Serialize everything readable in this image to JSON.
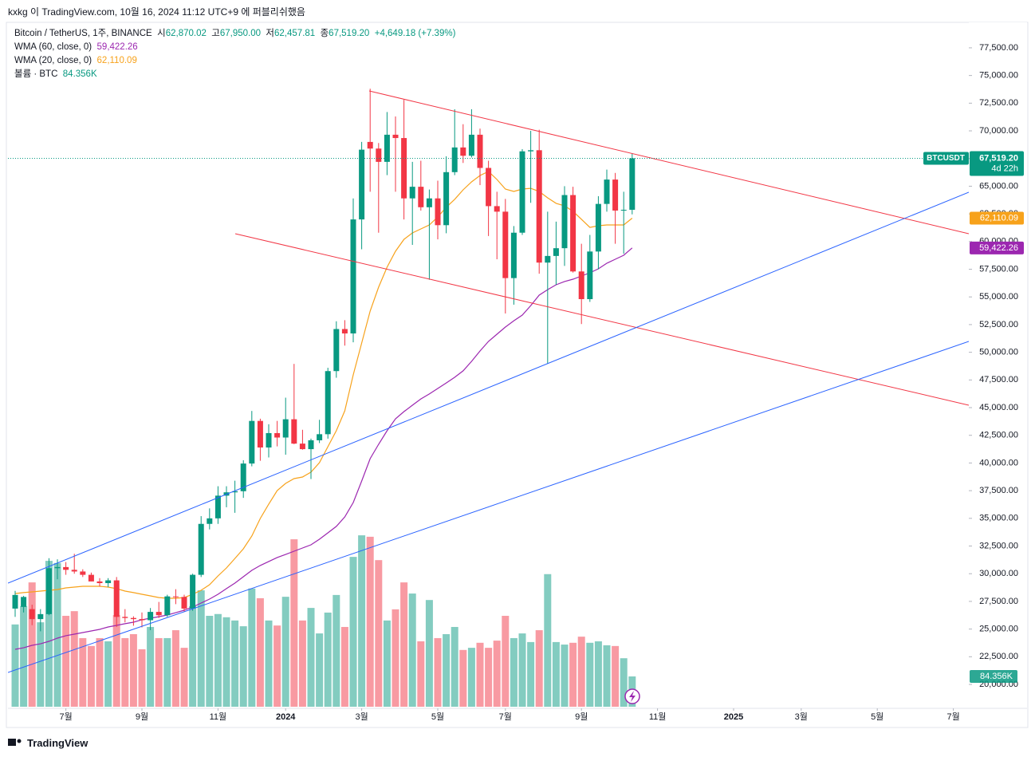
{
  "header": "kxkg 이 TradingView.com, 10월 16, 2024 11:12 UTC+9 에 퍼블리쉬했음",
  "footer_logo": "TradingView",
  "chart_data": {
    "type": "candlestick",
    "legend": {
      "symbol": "Bitcoin / TetherUS, 1주, BINANCE",
      "ohlc": [
        {
          "label": "시",
          "value": "62,870.02"
        },
        {
          "label": "고",
          "value": "67,950.00"
        },
        {
          "label": "저",
          "value": "62,457.81"
        },
        {
          "label": "종",
          "value": "67,519.20"
        }
      ],
      "change": "+4,649.18 (+7.39%)",
      "volume_name": "볼륨 · BTC",
      "volume_value": "84.356K"
    },
    "price_badge": {
      "symbol": "BTCUSDT",
      "price": "67,519.20",
      "countdown": "4d 22h"
    },
    "up_color": "#089981",
    "down_color": "#f23645",
    "volume_opacity": 0.5,
    "open": [
      26850,
      27000,
      26800,
      25900,
      26350,
      30500,
      30600,
      30350,
      30200,
      29900,
      29300,
      29150,
      29400,
      26100,
      26000,
      25900,
      25800,
      26550,
      26250,
      27950,
      27900,
      26850,
      29900,
      34500,
      35000,
      37050,
      37350,
      37450,
      39950,
      43800,
      41400,
      42700,
      42300,
      43950,
      41750,
      41250,
      42050,
      42600,
      48300,
      52100,
      51700,
      62000,
      69000,
      68400,
      67200,
      69650,
      69350,
      63900,
      64950,
      63100,
      63900,
      61480,
      66270,
      68500,
      67750,
      69650,
      66650,
      63200,
      62700,
      56700,
      60800,
      68150,
      68250,
      58100,
      58700,
      59400,
      64200,
      57300,
      54800,
      59100,
      63400,
      65600,
      62800,
      62870.02
    ],
    "high": [
      28450,
      28000,
      27200,
      26800,
      31400,
      31300,
      31050,
      31800,
      30400,
      30100,
      29600,
      29600,
      29700,
      26800,
      26150,
      26500,
      26900,
      27450,
      28100,
      28600,
      28100,
      30000,
      35200,
      35900,
      37900,
      37900,
      38400,
      40250,
      44700,
      44000,
      43500,
      43800,
      45900,
      48950,
      43000,
      42200,
      43900,
      48600,
      52800,
      52900,
      63900,
      69000,
      73800,
      68900,
      71700,
      71300,
      72800,
      67200,
      67300,
      64700,
      65500,
      67700,
      71950,
      70600,
      71950,
      70200,
      67300,
      64500,
      63850,
      61400,
      68350,
      70000,
      70100,
      62700,
      61800,
      65000,
      64950,
      59800,
      60600,
      64100,
      66500,
      66200,
      64500,
      67950
    ],
    "low": [
      26100,
      26500,
      25350,
      24800,
      26250,
      29500,
      29900,
      30000,
      29700,
      29300,
      28850,
      28800,
      25200,
      25600,
      25300,
      25150,
      24900,
      26000,
      26100,
      27250,
      26550,
      26650,
      29700,
      34000,
      34500,
      36000,
      35500,
      36850,
      39700,
      40200,
      40500,
      41500,
      40750,
      41700,
      41200,
      38550,
      41800,
      42200,
      47700,
      50600,
      50900,
      59300,
      64500,
      60800,
      66000,
      64500,
      62000,
      59700,
      62800,
      56550,
      60200,
      60750,
      66000,
      67100,
      67600,
      65100,
      60500,
      58400,
      53500,
      54300,
      60600,
      63500,
      57100,
      49000,
      56100,
      57800,
      57200,
      52550,
      54550,
      57500,
      62700,
      59800,
      58900,
      62457.81
    ],
    "close": [
      28080,
      27900,
      25900,
      26350,
      30500,
      30600,
      30350,
      30200,
      29900,
      29300,
      29150,
      29400,
      26100,
      26000,
      25900,
      25800,
      26550,
      26250,
      27950,
      27900,
      26850,
      29900,
      34500,
      35000,
      37050,
      37350,
      37450,
      39950,
      43800,
      41400,
      42700,
      42300,
      43950,
      41750,
      41250,
      42050,
      42600,
      48300,
      52100,
      51700,
      62000,
      68300,
      68400,
      67200,
      69650,
      69350,
      63900,
      64950,
      63100,
      63900,
      61480,
      66270,
      68500,
      67750,
      69650,
      66650,
      63200,
      62700,
      56700,
      60800,
      68150,
      68250,
      58100,
      58700,
      59400,
      64200,
      57300,
      54800,
      59100,
      63400,
      65600,
      62800,
      62870,
      67519.2
    ],
    "volume": [
      229000,
      280000,
      346000,
      235000,
      406000,
      400000,
      253000,
      266000,
      191000,
      169000,
      191000,
      182000,
      255000,
      191000,
      202000,
      160000,
      222000,
      191000,
      191000,
      213000,
      164000,
      280000,
      324000,
      253000,
      258000,
      249000,
      240000,
      224000,
      329000,
      302000,
      240000,
      226000,
      306000,
      466000,
      240000,
      275000,
      204000,
      262000,
      311000,
      222000,
      417000,
      477000,
      473000,
      408000,
      240000,
      271000,
      346000,
      315000,
      182000,
      297000,
      191000,
      202000,
      222000,
      158000,
      164000,
      178000,
      164000,
      184000,
      253000,
      191000,
      204000,
      180000,
      213000,
      369000,
      180000,
      173000,
      178000,
      195000,
      178000,
      182000,
      171000,
      169000,
      135000,
      84356
    ],
    "volume_lim": [
      0,
      1900000
    ],
    "indicators": [
      {
        "name": "WMA (60, close, 0)",
        "value_label": "59,422.26",
        "color": "#9c27b0",
        "values": [
          23170,
          23310,
          23530,
          23670,
          23890,
          24180,
          24400,
          24540,
          24680,
          24830,
          24970,
          25190,
          25330,
          25480,
          25620,
          25840,
          25980,
          26120,
          26270,
          26480,
          26700,
          26990,
          27350,
          27710,
          28140,
          28650,
          29150,
          29730,
          30300,
          30740,
          31100,
          31460,
          31740,
          32030,
          32320,
          32610,
          33110,
          33690,
          34270,
          35130,
          36430,
          38370,
          40390,
          41690,
          42910,
          43990,
          44640,
          45220,
          45790,
          46230,
          46730,
          47230,
          47740,
          48320,
          49180,
          50120,
          50980,
          51630,
          52280,
          52850,
          53360,
          54220,
          55160,
          55660,
          56100,
          56390,
          56600,
          56890,
          57180,
          57540,
          58040,
          58400,
          58760,
          59422.26
        ]
      },
      {
        "name": "WMA (20, close, 0)",
        "value_label": "62,110.09",
        "color": "#f7a21b",
        "values": [
          28210,
          28290,
          28360,
          28430,
          28500,
          28570,
          28720,
          28790,
          28860,
          28860,
          28860,
          28790,
          28650,
          28430,
          28290,
          28140,
          28000,
          27850,
          27780,
          27780,
          27850,
          28140,
          28500,
          29010,
          29800,
          30520,
          31380,
          32250,
          33400,
          34990,
          36280,
          37510,
          38160,
          38590,
          38730,
          39170,
          40030,
          41470,
          42920,
          44710,
          47960,
          50840,
          53720,
          55880,
          57680,
          59120,
          60200,
          60780,
          61140,
          61500,
          62220,
          63090,
          63810,
          64670,
          65390,
          65970,
          66330,
          65610,
          64740,
          64530,
          64740,
          64810,
          64530,
          63950,
          63450,
          63230,
          62730,
          62010,
          61280,
          61430,
          61500,
          61500,
          61500,
          62110.09
        ]
      }
    ],
    "trendlines": [
      {
        "color": "#f23645",
        "points": [
          [
            41.89,
            73605
          ],
          [
            112.83,
            60708
          ]
        ]
      },
      {
        "color": "#f23645",
        "points": [
          [
            26.04,
            60708
          ],
          [
            112.83,
            45218
          ]
        ]
      },
      {
        "color": "#2962ff",
        "points": [
          [
            -0.85,
            29150
          ],
          [
            112.83,
            64455
          ]
        ]
      },
      {
        "color": "#2962ff",
        "points": [
          [
            -0.85,
            21081
          ],
          [
            112.83,
            50982
          ]
        ]
      }
    ],
    "xlim": [
      -0.85,
      112.83
    ],
    "xticks": [
      {
        "value": 6,
        "label": "7월"
      },
      {
        "value": 15,
        "label": "9월"
      },
      {
        "value": 24,
        "label": "11월"
      },
      {
        "value": 32,
        "label": "2024"
      },
      {
        "value": 41,
        "label": "3월"
      },
      {
        "value": 50,
        "label": "5월"
      },
      {
        "value": 58,
        "label": "7월"
      },
      {
        "value": 67,
        "label": "9월"
      },
      {
        "value": 76,
        "label": "11월"
      },
      {
        "value": 85,
        "label": "2025"
      },
      {
        "value": 93,
        "label": "3월"
      },
      {
        "value": 102,
        "label": "5월"
      },
      {
        "value": 111,
        "label": "7월"
      }
    ],
    "ylim": [
      17983,
      79657
    ],
    "yticks": [
      {
        "value": 20000,
        "label": "20,000.00"
      },
      {
        "value": 22500,
        "label": "22,500.00"
      },
      {
        "value": 25000,
        "label": "25,000.00"
      },
      {
        "value": 27500,
        "label": "27,500.00"
      },
      {
        "value": 30000,
        "label": "30,000.00"
      },
      {
        "value": 32500,
        "label": "32,500.00"
      },
      {
        "value": 35000,
        "label": "35,000.00"
      },
      {
        "value": 37500,
        "label": "37,500.00"
      },
      {
        "value": 40000,
        "label": "40,000.00"
      },
      {
        "value": 42500,
        "label": "42,500.00"
      },
      {
        "value": 45000,
        "label": "45,000.00"
      },
      {
        "value": 47500,
        "label": "47,500.00"
      },
      {
        "value": 50000,
        "label": "50,000.00"
      },
      {
        "value": 52500,
        "label": "52,500.00"
      },
      {
        "value": 55000,
        "label": "55,000.00"
      },
      {
        "value": 57500,
        "label": "57,500.00"
      },
      {
        "value": 60000,
        "label": "60,000.00"
      },
      {
        "value": 62500,
        "label": "62,500.00"
      },
      {
        "value": 65000,
        "label": "65,000.00"
      },
      {
        "value": 67500,
        "label": "67,500.00"
      },
      {
        "value": 70000,
        "label": "70,000.00"
      },
      {
        "value": 72500,
        "label": "72,500.00"
      },
      {
        "value": 75000,
        "label": "75,000.00"
      },
      {
        "value": 77500,
        "label": "77,500.00"
      }
    ],
    "grid": false
  }
}
